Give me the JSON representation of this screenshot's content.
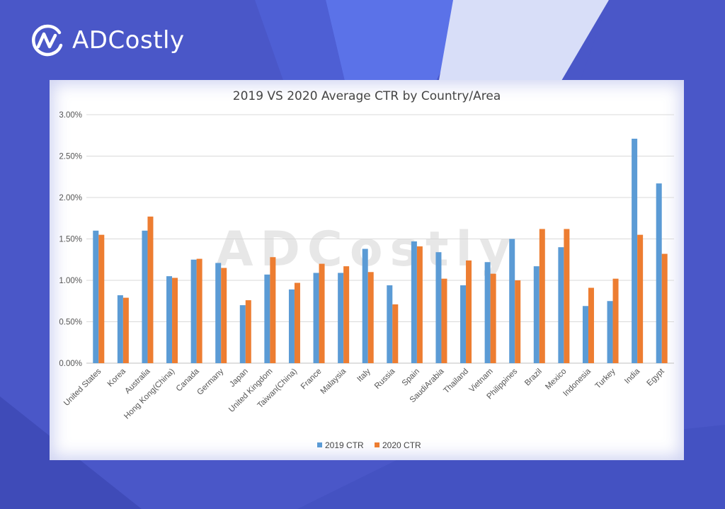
{
  "brand": {
    "name": "ADCostly",
    "logo_icon": "adcostly-logo-icon"
  },
  "watermark": "ADCostly",
  "colors": {
    "background": "#4a57c8",
    "series_2019": "#5b9bd5",
    "series_2020": "#ed7d31"
  },
  "chart_data": {
    "type": "bar",
    "title": "2019 VS 2020 Average CTR by Country/Area",
    "xlabel": "",
    "ylabel": "",
    "ylim": [
      0,
      3.0
    ],
    "yticks": [
      "0.00%",
      "0.50%",
      "1.00%",
      "1.50%",
      "2.00%",
      "2.50%",
      "3.00%"
    ],
    "grid": true,
    "legend_position": "bottom",
    "categories": [
      "United States",
      "Korea",
      "Australia",
      "Hong Kong(China)",
      "Canada",
      "Germany",
      "Japan",
      "United Kingdom",
      "Taiwan(China)",
      "France",
      "Malaysia",
      "Italy",
      "Russia",
      "Spain",
      "SaudiArabia",
      "Thailand",
      "Vietnam",
      "Philippines",
      "Brazil",
      "Mexico",
      "Indonesia",
      "Turkey",
      "India",
      "Egypt"
    ],
    "series": [
      {
        "name": "2019 CTR",
        "color": "#5b9bd5",
        "values": [
          1.6,
          0.82,
          1.6,
          1.05,
          1.25,
          1.21,
          0.7,
          1.07,
          0.89,
          1.09,
          1.09,
          1.38,
          0.94,
          1.47,
          1.34,
          0.94,
          1.22,
          1.5,
          1.17,
          1.4,
          0.69,
          0.75,
          2.71,
          2.17
        ]
      },
      {
        "name": "2020 CTR",
        "color": "#ed7d31",
        "values": [
          1.55,
          0.79,
          1.77,
          1.03,
          1.26,
          1.15,
          0.76,
          1.28,
          0.97,
          1.2,
          1.17,
          1.1,
          0.71,
          1.41,
          1.02,
          1.24,
          1.08,
          1.0,
          1.62,
          1.62,
          0.91,
          1.02,
          1.55,
          1.32
        ]
      }
    ]
  }
}
